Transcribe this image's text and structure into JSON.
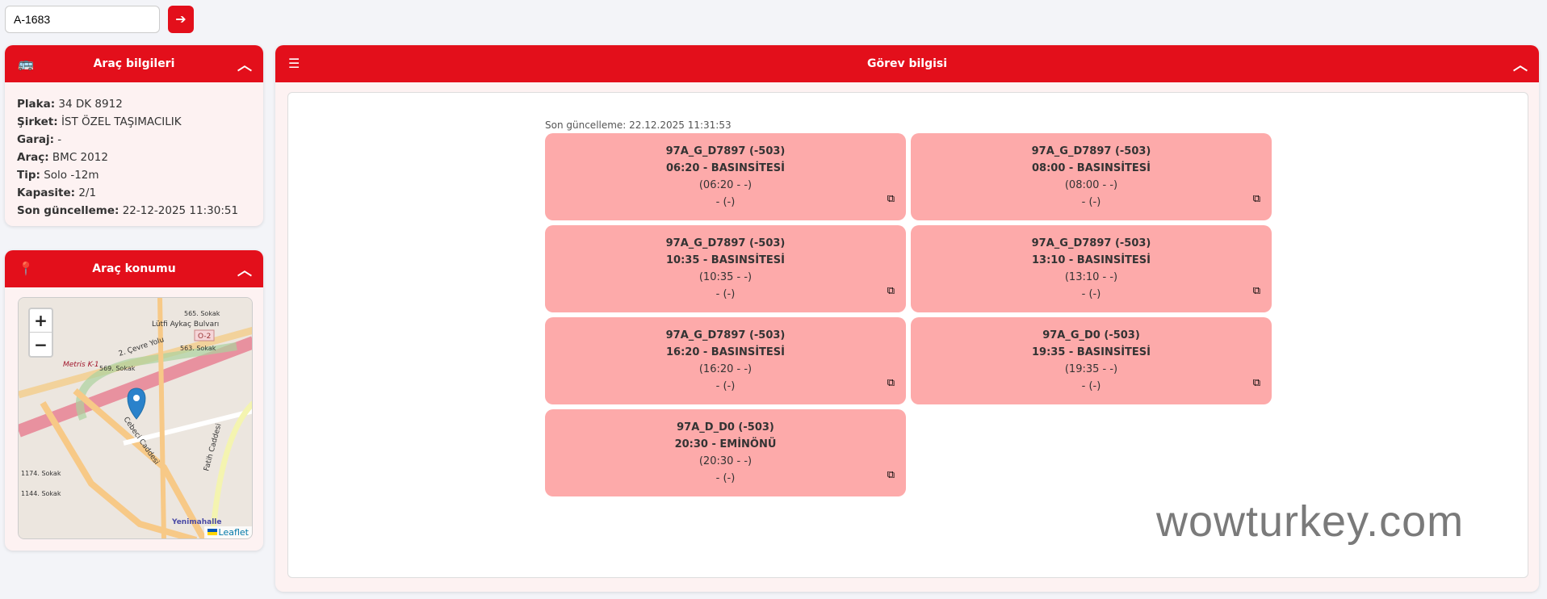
{
  "search": {
    "value": "A-1683"
  },
  "info": {
    "title": "Araç bilgileri",
    "rows": [
      {
        "label": "Plaka:",
        "value": "34 DK 8912"
      },
      {
        "label": "Şirket:",
        "value": "İST ÖZEL TAŞIMACILIK"
      },
      {
        "label": "Garaj:",
        "value": "-"
      },
      {
        "label": "Araç:",
        "value": "BMC 2012"
      },
      {
        "label": "Tip:",
        "value": "Solo -12m"
      },
      {
        "label": "Kapasite:",
        "value": "2/1"
      },
      {
        "label": "Son güncelleme:",
        "value": "22-12-2025 11:30:51"
      }
    ]
  },
  "location": {
    "title": "Araç konumu",
    "zoom_in": "+",
    "zoom_out": "−",
    "attribution": "Leaflet",
    "labels": [
      "Lütfi Aykaç Bulvarı",
      "2. Çevre Yolu",
      "O-2",
      "Metris K-1",
      "Cebeci Caddesi",
      "Fatih Caddesi",
      "Yenimahalle",
      "565. Sokak",
      "563. Sokak",
      "569. Sokak",
      "1174. Sokak",
      "1144. Sokak"
    ]
  },
  "task": {
    "title": "Görev bilgisi",
    "updated": "Son güncelleme: 22.12.2025 11:31:53",
    "cards": [
      {
        "code": "97A_G_D7897 (-503)",
        "route": "06:20 - BASINSİTESİ",
        "time": "(06:20 - -)",
        "extra": "- (-)"
      },
      {
        "code": "97A_G_D7897 (-503)",
        "route": "08:00 - BASINSİTESİ",
        "time": "(08:00 - -)",
        "extra": "- (-)"
      },
      {
        "code": "97A_G_D7897 (-503)",
        "route": "10:35 - BASINSİTESİ",
        "time": "(10:35 - -)",
        "extra": "- (-)"
      },
      {
        "code": "97A_G_D7897 (-503)",
        "route": "13:10 - BASINSİTESİ",
        "time": "(13:10 - -)",
        "extra": "- (-)"
      },
      {
        "code": "97A_G_D7897 (-503)",
        "route": "16:20 - BASINSİTESİ",
        "time": "(16:20 - -)",
        "extra": "- (-)"
      },
      {
        "code": "97A_G_D0 (-503)",
        "route": "19:35 - BASINSİTESİ",
        "time": "(19:35 - -)",
        "extra": "- (-)"
      },
      {
        "code": "97A_D_D0 (-503)",
        "route": "20:30 - EMİNÖNÜ",
        "time": "(20:30 - -)",
        "extra": "- (-)"
      }
    ]
  },
  "watermark": "wowturkey.com",
  "colors": {
    "accent": "#e30f1b",
    "card": "#fdaaaa",
    "panel_bg": "#fdf2f2"
  }
}
